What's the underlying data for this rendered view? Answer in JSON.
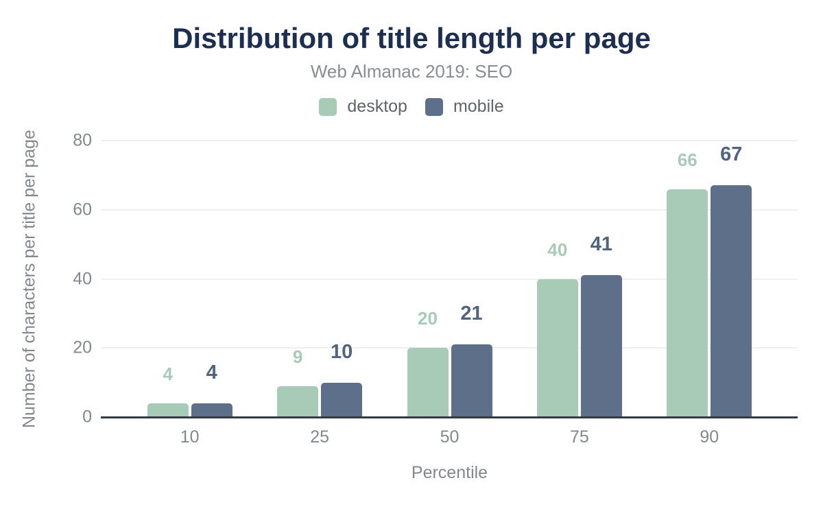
{
  "chart_data": {
    "type": "bar",
    "title": "Distribution of title length per page",
    "subtitle": "Web Almanac 2019: SEO",
    "xlabel": "Percentile",
    "ylabel": "Number of characters per title per page",
    "categories": [
      "10",
      "25",
      "50",
      "75",
      "90"
    ],
    "series": [
      {
        "name": "desktop",
        "color": "#a8cbb8",
        "label_color": "#a8cbb8",
        "values": [
          4,
          9,
          20,
          40,
          66
        ]
      },
      {
        "name": "mobile",
        "color": "#5e7089",
        "label_color": "#506380",
        "values": [
          4,
          10,
          21,
          41,
          67
        ]
      }
    ],
    "ylim": [
      0,
      80
    ],
    "yticks": [
      0,
      20,
      40,
      60,
      80
    ],
    "grid": "horizontal",
    "legend_position": "top",
    "value_labels": true
  },
  "colors": {
    "title_text": "#1c2e52",
    "subtitle_text": "#898d92",
    "legend_text": "#606469",
    "axis_text": "#83878e",
    "gridline": "#efefef",
    "axis_line": "#333a42",
    "background": "#ffffff",
    "desktop_series": "#a8cbb8",
    "mobile_series": "#5e7089"
  }
}
